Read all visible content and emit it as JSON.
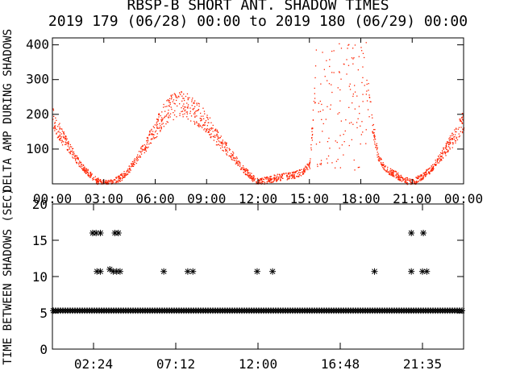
{
  "chart_data": [
    {
      "type": "scatter",
      "title": "RBSP-B SHORT ANT. SHADOW TIMES",
      "subtitle": "2019 179 (06/28) 00:00 to 2019 180 (06/29) 00:00",
      "ylabel": "DELTA AMP DURING SHADOWS",
      "xlabel": "",
      "xlim": [
        0,
        24
      ],
      "ylim": [
        0,
        420
      ],
      "x_ticks": [
        "00:00",
        "03:00",
        "06:00",
        "09:00",
        "12:00",
        "15:00",
        "18:00",
        "21:00",
        "00:00"
      ],
      "y_ticks": [
        "100",
        "200",
        "300",
        "400"
      ],
      "grid": false,
      "marker_color": "#ff2200",
      "envelope": {
        "x": [
          0,
          0.5,
          1,
          1.5,
          2,
          2.5,
          3,
          3.5,
          4,
          4.5,
          5,
          5.5,
          6,
          6.5,
          7,
          7.5,
          8,
          8.5,
          9,
          9.5,
          10,
          10.5,
          11,
          11.5,
          12,
          12.5,
          13,
          13.5,
          14,
          14.5,
          15,
          15.5,
          16,
          16.5,
          17,
          17.5,
          18,
          18.5,
          19,
          19.5,
          20,
          20.5,
          21,
          21.5,
          22,
          22.5,
          23,
          23.5,
          24
        ],
        "y": [
          190,
          140,
          100,
          65,
          35,
          12,
          2,
          5,
          20,
          45,
          80,
          120,
          160,
          200,
          225,
          230,
          220,
          200,
          175,
          140,
          110,
          80,
          50,
          25,
          5,
          12,
          18,
          22,
          25,
          35,
          55,
          410,
          410,
          410,
          410,
          410,
          410,
          220,
          75,
          40,
          28,
          12,
          5,
          20,
          40,
          70,
          105,
          140,
          185
        ]
      }
    },
    {
      "type": "scatter",
      "title": "",
      "ylabel": "TIME BETWEEN SHADOWS (SEC)",
      "xlabel": "",
      "xlim": [
        0,
        24
      ],
      "ylim": [
        0,
        20
      ],
      "x_ticks": [
        "02:24",
        "07:12",
        "12:00",
        "16:48",
        "21:35"
      ],
      "y_ticks": [
        "0",
        "5",
        "10",
        "15",
        "20"
      ],
      "grid": false,
      "marker_color": "#000000",
      "baseline_value": 5.3,
      "points": [
        {
          "x": 2.35,
          "y": 16
        },
        {
          "x": 2.55,
          "y": 16
        },
        {
          "x": 2.8,
          "y": 16
        },
        {
          "x": 3.65,
          "y": 16
        },
        {
          "x": 3.85,
          "y": 16
        },
        {
          "x": 20.95,
          "y": 16
        },
        {
          "x": 21.65,
          "y": 16
        },
        {
          "x": 2.6,
          "y": 10.7
        },
        {
          "x": 2.8,
          "y": 10.7
        },
        {
          "x": 3.35,
          "y": 11
        },
        {
          "x": 3.55,
          "y": 10.7
        },
        {
          "x": 3.75,
          "y": 10.7
        },
        {
          "x": 3.95,
          "y": 10.7
        },
        {
          "x": 6.5,
          "y": 10.7
        },
        {
          "x": 7.9,
          "y": 10.7
        },
        {
          "x": 8.2,
          "y": 10.7
        },
        {
          "x": 11.95,
          "y": 10.7
        },
        {
          "x": 12.85,
          "y": 10.7
        },
        {
          "x": 18.8,
          "y": 10.7
        },
        {
          "x": 20.95,
          "y": 10.7
        },
        {
          "x": 21.6,
          "y": 10.7
        },
        {
          "x": 21.85,
          "y": 10.7
        }
      ]
    }
  ]
}
